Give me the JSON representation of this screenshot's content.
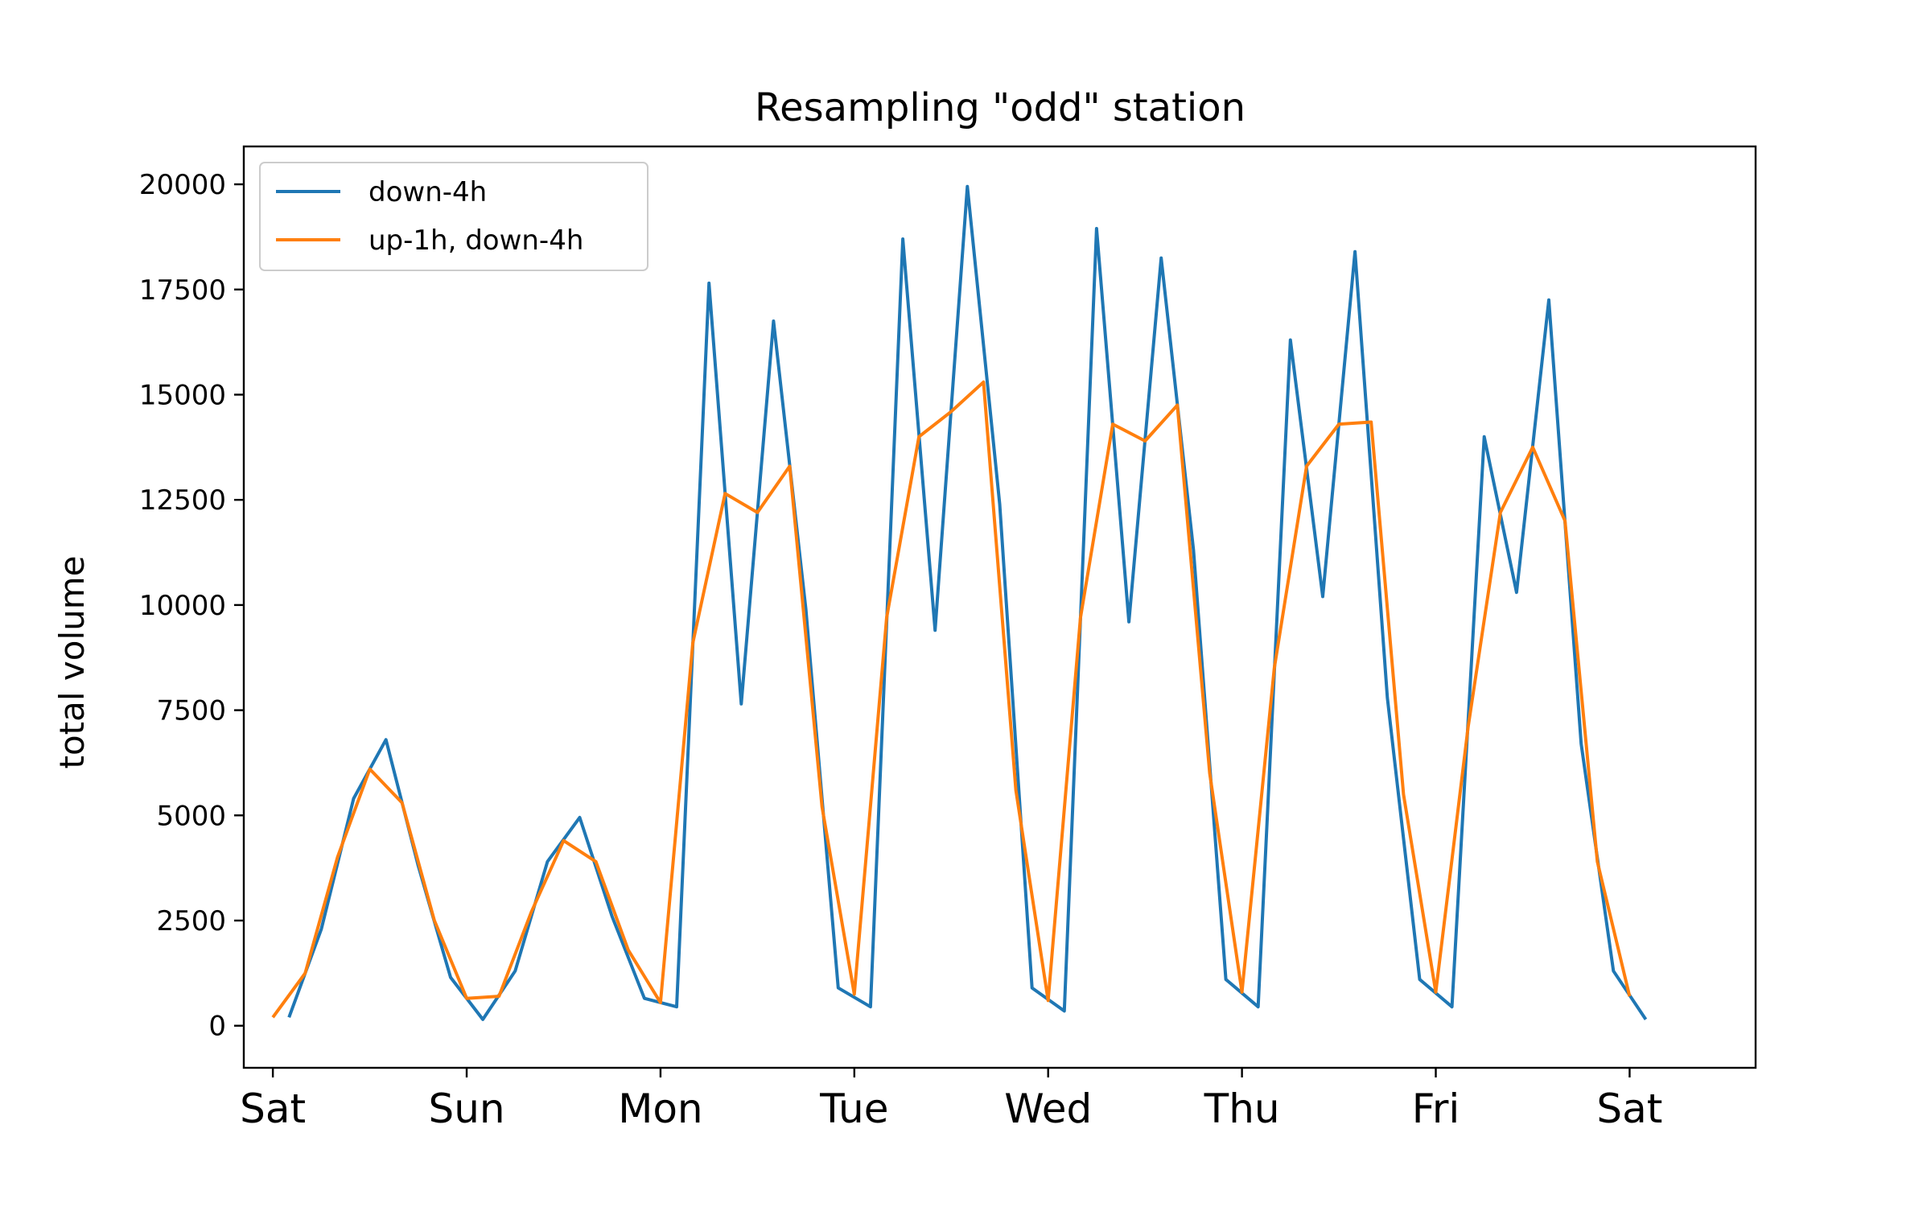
{
  "chart_data": {
    "type": "line",
    "title": "Resampling \"odd\" station",
    "xlabel": "",
    "ylabel": "total volume",
    "ylim": [
      -1000,
      20900
    ],
    "xlim": [
      -0.15,
      7.65
    ],
    "y_ticks": [
      0,
      2500,
      5000,
      7500,
      10000,
      12500,
      15000,
      17500,
      20000
    ],
    "y_tick_labels": [
      "0",
      "2500",
      "5000",
      "7500",
      "10000",
      "12500",
      "15000",
      "17500",
      "20000"
    ],
    "x_ticks": [
      0,
      1,
      2,
      3,
      4,
      5,
      6,
      7
    ],
    "x_tick_labels": [
      "Sat",
      "Sun",
      "Mon",
      "Tue",
      "Wed",
      "Thu",
      "Fri",
      "Sat"
    ],
    "grid": false,
    "legend": "top-left",
    "series": [
      {
        "name": "down-4h",
        "color": "#1f77b4",
        "x": [
          0.0833,
          0.25,
          0.4167,
          0.5833,
          0.75,
          0.9167,
          1.0833,
          1.25,
          1.4167,
          1.5833,
          1.75,
          1.9167,
          2.0833,
          2.25,
          2.4167,
          2.5833,
          2.75,
          2.9167,
          3.0833,
          3.25,
          3.4167,
          3.5833,
          3.75,
          3.9167,
          4.0833,
          4.25,
          4.4167,
          4.5833,
          4.75,
          4.9167,
          5.0833,
          5.25,
          5.4167,
          5.5833,
          5.75,
          5.9167,
          6.0833,
          6.25,
          6.4167,
          6.5833,
          6.75,
          6.9167,
          7.0833
        ],
        "y": [
          200,
          2300,
          5400,
          6800,
          3800,
          1150,
          150,
          1300,
          3900,
          4950,
          2600,
          650,
          450,
          17650,
          7650,
          16750,
          9900,
          900,
          450,
          18700,
          9400,
          19950,
          12400,
          900,
          350,
          18950,
          9600,
          18250,
          11300,
          1100,
          450,
          16300,
          10200,
          18400,
          7800,
          1100,
          450,
          14000,
          10300,
          17250,
          6700,
          1300,
          150
        ]
      },
      {
        "name": "up-1h, down-4h",
        "color": "#ff7f0e",
        "x": [
          0.0,
          0.1667,
          0.3333,
          0.5,
          0.6667,
          0.8333,
          1.0,
          1.1667,
          1.3333,
          1.5,
          1.6667,
          1.8333,
          2.0,
          2.1667,
          2.3333,
          2.5,
          2.6667,
          2.8333,
          3.0,
          3.1667,
          3.3333,
          3.5,
          3.6667,
          3.8333,
          4.0,
          4.1667,
          4.3333,
          4.5,
          4.6667,
          4.8333,
          5.0,
          5.1667,
          5.3333,
          5.5,
          5.6667,
          5.8333,
          6.0,
          6.1667,
          6.3333,
          6.5,
          6.6667,
          6.8333,
          7.0
        ],
        "y": [
          200,
          1250,
          4000,
          6100,
          5300,
          2500,
          650,
          700,
          2700,
          4400,
          3900,
          1800,
          550,
          9100,
          12650,
          12200,
          13300,
          5200,
          750,
          9700,
          14000,
          14600,
          15300,
          5600,
          600,
          9700,
          14300,
          13900,
          14750,
          6000,
          800,
          8500,
          13300,
          14300,
          14350,
          5500,
          800,
          7100,
          12200,
          13750,
          12000,
          3900,
          700
        ]
      }
    ]
  }
}
